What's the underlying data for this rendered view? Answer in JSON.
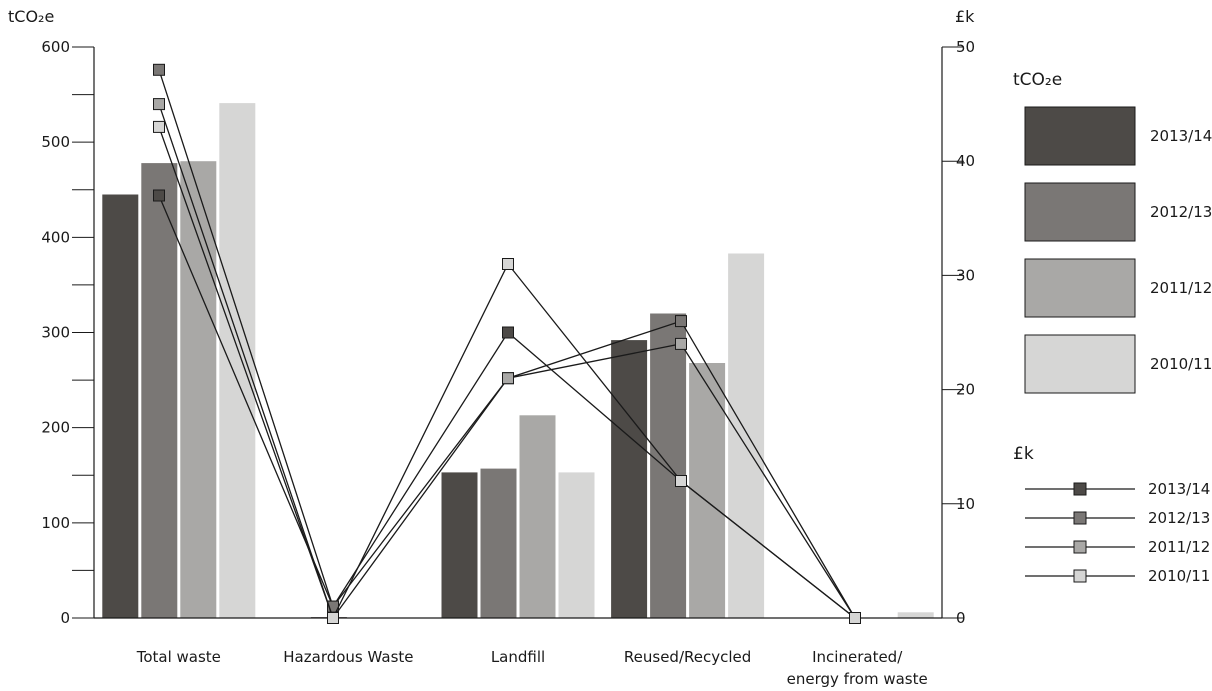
{
  "chart_data": {
    "type": "bar+line",
    "categories": [
      "Total waste",
      "Hazardous Waste",
      "Landfill",
      "Reused/Recycled",
      "Incinerated/\nenergy from waste"
    ],
    "y_left": {
      "label": "tCO₂e",
      "ylim": [
        0,
        600
      ],
      "ticks": [
        "0",
        "100",
        "200",
        "300",
        "400",
        "500",
        "600"
      ]
    },
    "y_right": {
      "label": "£k",
      "ylim": [
        0,
        50
      ],
      "ticks": [
        "0",
        "10",
        "20",
        "30",
        "40",
        "50"
      ]
    },
    "bar_series": [
      {
        "name": "2013/14",
        "color": "#4d4a47",
        "values": [
          445,
          0,
          153,
          292,
          0
        ]
      },
      {
        "name": "2012/13",
        "color": "#7a7775",
        "values": [
          478,
          1,
          157,
          320,
          0
        ]
      },
      {
        "name": "2011/12",
        "color": "#a9a8a6",
        "values": [
          480,
          0,
          213,
          268,
          0
        ]
      },
      {
        "name": "2010/11",
        "color": "#d6d6d5",
        "values": [
          541,
          0,
          153,
          383,
          6
        ]
      }
    ],
    "line_series": [
      {
        "name": "2013/14",
        "color": "#4d4a47",
        "values": [
          37,
          1,
          25,
          12,
          0
        ]
      },
      {
        "name": "2012/13",
        "color": "#7a7775",
        "values": [
          48,
          1,
          21,
          26,
          0
        ]
      },
      {
        "name": "2011/12",
        "color": "#a9a8a6",
        "values": [
          45,
          0,
          21,
          24,
          0
        ]
      },
      {
        "name": "2010/11",
        "color": "#d6d6d5",
        "values": [
          43,
          0,
          31,
          12,
          0
        ]
      }
    ],
    "legend": {
      "bar_title": "tCO₂e",
      "line_title": "£k",
      "placement": "right"
    },
    "grid": false
  }
}
